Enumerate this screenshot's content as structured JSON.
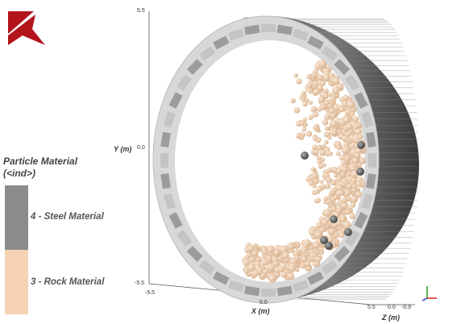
{
  "legend": {
    "title": "Particle Material",
    "subtitle": "(<ind>)",
    "items": [
      {
        "label": "4 - Steel Material",
        "color": "#8c8c8c"
      },
      {
        "label": "3 - Rock Material",
        "color": "#f5d3b3"
      }
    ]
  },
  "axes": {
    "y_label": "Y (m)",
    "x_label": "X (m)",
    "z_label": "Z (m)",
    "y_ticks": [
      "5.5",
      "0.0",
      "-5.5"
    ],
    "x_ticks": [
      "-5.5",
      "0.0",
      "5.5"
    ],
    "z_ticks": [
      "0.0",
      "-0.9"
    ]
  },
  "colors": {
    "rock_particle": "#efcfb0",
    "steel_particle": "#6e6e6e",
    "drum_dark": "#5a5a5a",
    "drum_light": "#cfcfcf",
    "logo_red": "#b3141c"
  },
  "icons": {
    "logo": "brand-logo-icon",
    "triad": "axis-triad-icon"
  }
}
